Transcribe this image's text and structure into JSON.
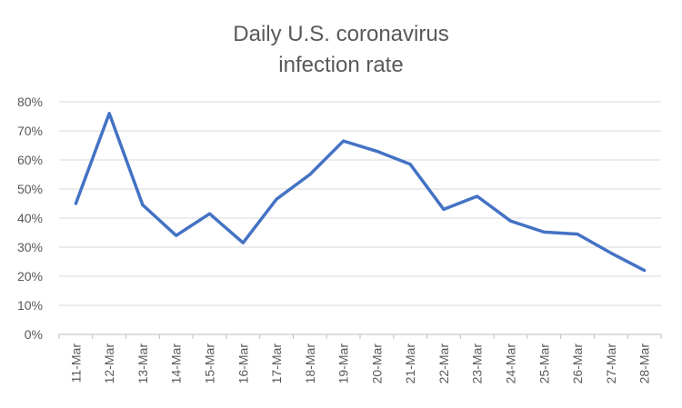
{
  "chart_data": {
    "type": "line",
    "title": "Daily U.S. coronavirus infection rate",
    "title_lines": [
      "Daily U.S. coronavirus",
      "infection rate"
    ],
    "xlabel": "",
    "ylabel": "",
    "categories": [
      "11-Mar",
      "12-Mar",
      "13-Mar",
      "14-Mar",
      "15-Mar",
      "16-Mar",
      "17-Mar",
      "18-Mar",
      "19-Mar",
      "20-Mar",
      "21-Mar",
      "22-Mar",
      "23-Mar",
      "24-Mar",
      "25-Mar",
      "26-Mar",
      "27-Mar",
      "28-Mar"
    ],
    "series": [
      {
        "name": "Daily U.S. coronavirus infection rate",
        "values": [
          0.45,
          0.76,
          0.445,
          0.34,
          0.415,
          0.315,
          0.465,
          0.55,
          0.665,
          0.63,
          0.585,
          0.43,
          0.475,
          0.39,
          0.352,
          0.345,
          0.28,
          0.22
        ]
      }
    ],
    "ylim": [
      0,
      0.8
    ],
    "yticks": [
      0,
      0.1,
      0.2,
      0.3,
      0.4,
      0.5,
      0.6,
      0.7,
      0.8
    ],
    "ytick_labels": [
      "0%",
      "10%",
      "20%",
      "30%",
      "40%",
      "50%",
      "60%",
      "70%",
      "80%"
    ],
    "grid": true,
    "legend": "none",
    "colors": {
      "line": "#4472c4",
      "grid": "#d9d9d9",
      "axis": "#bfbfbf",
      "text": "#595959"
    }
  }
}
